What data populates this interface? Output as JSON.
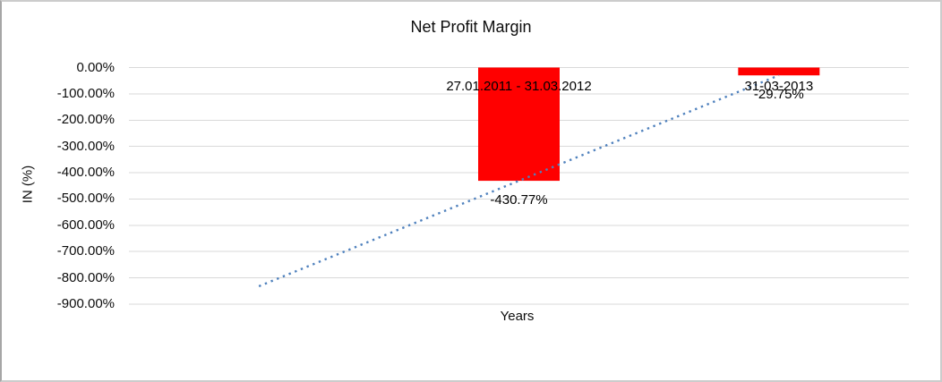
{
  "frame": {
    "background": "#ffffff",
    "border_color": "#cccccc"
  },
  "chart_data": {
    "type": "bar",
    "title": "Net Profit Margin",
    "xlabel": "Years",
    "ylabel": "IN (%)",
    "categories": [
      "",
      "27.01.2011 - 31.03.2012",
      "31-03-2013"
    ],
    "values": [
      null,
      -430.77,
      -29.75
    ],
    "data_labels": [
      null,
      "-430.77%",
      "-29.75%"
    ],
    "ylim": [
      -900,
      0
    ],
    "ytick_values": [
      0,
      -100,
      -200,
      -300,
      -400,
      -500,
      -600,
      -700,
      -800,
      -900
    ],
    "ytick_labels": [
      "0.00%",
      "-100.00%",
      "-200.00%",
      "-300.00%",
      "-400.00%",
      "-500.00%",
      "-600.00%",
      "-700.00%",
      "-800.00%",
      "-900.00%"
    ],
    "grid": true,
    "legend": "none",
    "bar_color": "#FF0000",
    "gridline_color": "#D9D9D9",
    "trendline": {
      "type": "linear",
      "style": "dotted",
      "color": "#4F81BD",
      "start": {
        "slot": 0,
        "value": -831.8
      },
      "end": {
        "slot": 2,
        "value": -29.75
      }
    }
  }
}
